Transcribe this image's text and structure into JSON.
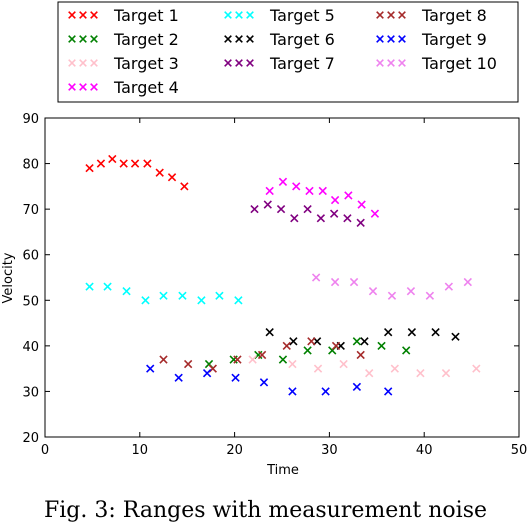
{
  "chart_data": {
    "type": "scatter",
    "xlabel": "Time",
    "ylabel": "Velocity",
    "xlim": [
      0,
      50
    ],
    "ylim": [
      20,
      90
    ],
    "xticks": [
      0,
      10,
      20,
      30,
      40,
      50
    ],
    "yticks": [
      20,
      30,
      40,
      50,
      60,
      70,
      80,
      90
    ],
    "grid": false,
    "legend": "top-outside",
    "marker": "x",
    "series": [
      {
        "name": "Target 1",
        "color": "#ff0000",
        "points": [
          [
            4.7,
            79
          ],
          [
            5.9,
            80
          ],
          [
            7.1,
            81
          ],
          [
            8.3,
            80
          ],
          [
            9.5,
            80
          ],
          [
            10.8,
            80
          ],
          [
            12.1,
            78
          ],
          [
            13.4,
            77
          ],
          [
            14.7,
            75
          ]
        ]
      },
      {
        "name": "Target 2",
        "color": "#008000",
        "points": [
          [
            17.3,
            36
          ],
          [
            19.9,
            37
          ],
          [
            22.5,
            38
          ],
          [
            25.1,
            37
          ],
          [
            27.7,
            39
          ],
          [
            30.3,
            39
          ],
          [
            32.9,
            41
          ],
          [
            35.5,
            40
          ],
          [
            38.1,
            39
          ]
        ]
      },
      {
        "name": "Target 3",
        "color": "#ffc0cb",
        "points": [
          [
            17.7,
            35
          ],
          [
            21.9,
            37
          ],
          [
            26.1,
            36
          ],
          [
            28.8,
            35
          ],
          [
            31.5,
            36
          ],
          [
            34.2,
            34
          ],
          [
            36.9,
            35
          ],
          [
            39.6,
            34
          ],
          [
            42.3,
            34
          ],
          [
            45.5,
            35
          ]
        ]
      },
      {
        "name": "Target 4",
        "color": "#ff00ff",
        "points": [
          [
            23.7,
            74
          ],
          [
            25.1,
            76
          ],
          [
            26.5,
            75
          ],
          [
            27.9,
            74
          ],
          [
            29.3,
            74
          ],
          [
            30.6,
            72
          ],
          [
            32.0,
            73
          ],
          [
            33.4,
            71
          ],
          [
            34.8,
            69
          ]
        ]
      },
      {
        "name": "Target 5",
        "color": "#00ffff",
        "points": [
          [
            4.7,
            53
          ],
          [
            6.6,
            53
          ],
          [
            8.6,
            52
          ],
          [
            10.6,
            50
          ],
          [
            12.5,
            51
          ],
          [
            14.5,
            51
          ],
          [
            16.5,
            50
          ],
          [
            18.4,
            51
          ],
          [
            20.4,
            50
          ]
        ]
      },
      {
        "name": "Target 6",
        "color": "#000000",
        "points": [
          [
            23.7,
            43
          ],
          [
            26.2,
            41
          ],
          [
            28.7,
            41
          ],
          [
            31.2,
            40
          ],
          [
            33.7,
            41
          ],
          [
            36.2,
            43
          ],
          [
            38.7,
            43
          ],
          [
            41.2,
            43
          ],
          [
            43.3,
            42
          ]
        ]
      },
      {
        "name": "Target 7",
        "color": "#800080",
        "points": [
          [
            22.1,
            70
          ],
          [
            23.5,
            71
          ],
          [
            24.9,
            70
          ],
          [
            26.3,
            68
          ],
          [
            27.7,
            70
          ],
          [
            29.1,
            68
          ],
          [
            30.5,
            69
          ],
          [
            31.9,
            68
          ],
          [
            33.3,
            67
          ]
        ]
      },
      {
        "name": "Target 8",
        "color": "#a52a2a",
        "points": [
          [
            12.5,
            37
          ],
          [
            15.1,
            36
          ],
          [
            17.7,
            35
          ],
          [
            20.3,
            37
          ],
          [
            22.9,
            38
          ],
          [
            25.5,
            40
          ],
          [
            28.1,
            41
          ],
          [
            30.7,
            40
          ],
          [
            33.3,
            38
          ]
        ]
      },
      {
        "name": "Target 9",
        "color": "#0000ff",
        "points": [
          [
            11.1,
            35
          ],
          [
            14.1,
            33
          ],
          [
            17.1,
            34
          ],
          [
            20.1,
            33
          ],
          [
            23.1,
            32
          ],
          [
            26.1,
            30
          ],
          [
            29.6,
            30
          ],
          [
            32.9,
            31
          ],
          [
            36.2,
            30
          ]
        ]
      },
      {
        "name": "Target 10",
        "color": "#ee82ee",
        "points": [
          [
            28.6,
            55
          ],
          [
            30.6,
            54
          ],
          [
            32.6,
            54
          ],
          [
            34.6,
            52
          ],
          [
            36.6,
            51
          ],
          [
            38.6,
            52
          ],
          [
            40.6,
            51
          ],
          [
            42.6,
            53
          ],
          [
            44.6,
            54
          ]
        ]
      }
    ]
  },
  "caption": "Fig. 3: Ranges with measurement noise"
}
